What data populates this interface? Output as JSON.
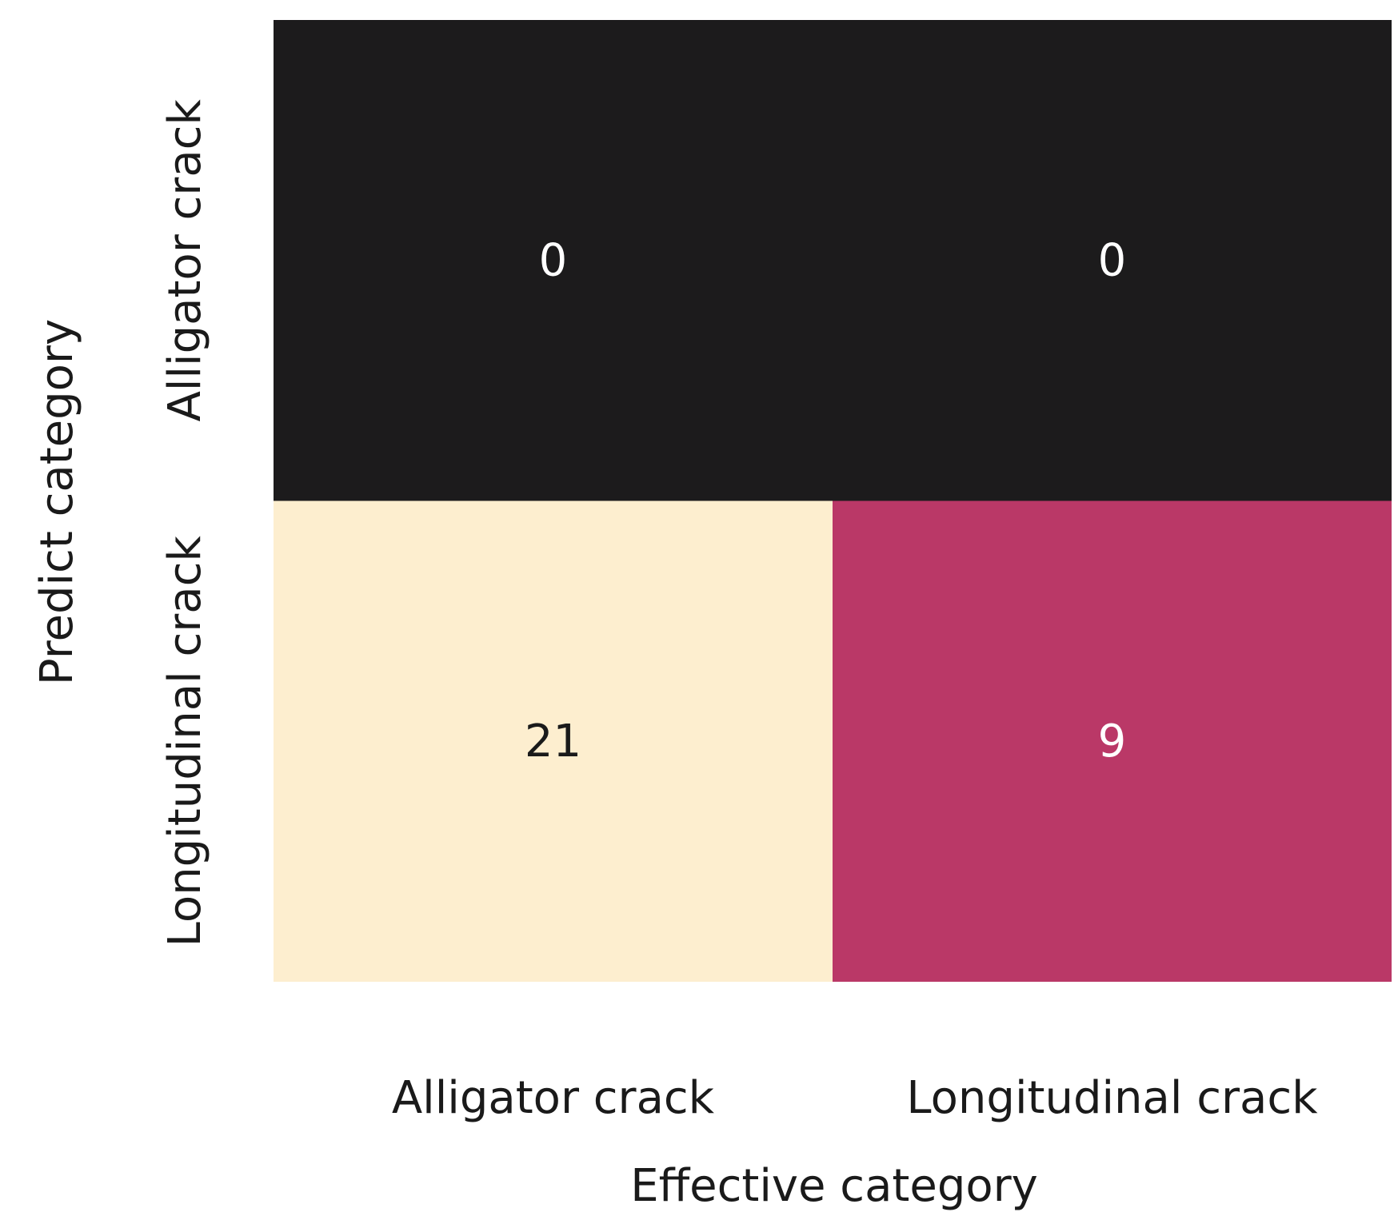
{
  "chart_data": {
    "type": "heatmap",
    "xlabel": "Effective category",
    "ylabel": "Predict category",
    "x_categories": [
      "Alligator crack",
      "Longitudinal crack"
    ],
    "y_categories": [
      "Alligator crack",
      "Longitudinal crack"
    ],
    "values": [
      [
        0,
        0
      ],
      [
        21,
        9
      ]
    ],
    "colors": {
      "low": "#1c1b1c",
      "mid": "#d43d73",
      "high": "#fdeecf",
      "text_dark": "#1a1a1a",
      "text_light": "#ffffff"
    }
  }
}
